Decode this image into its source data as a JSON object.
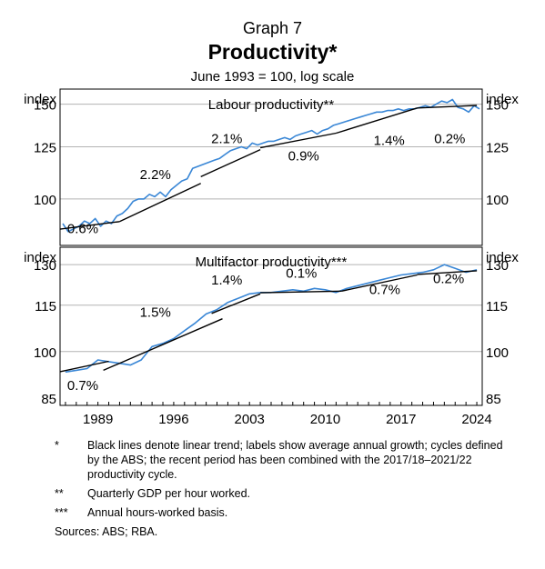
{
  "header": {
    "graph_number": "Graph 7",
    "title": "Productivity*",
    "subtitle": "June 1993 = 100, log scale"
  },
  "footnotes": [
    {
      "mark": "*",
      "text": "Black lines denote linear trend; labels show average annual growth; cycles defined by the ABS; the recent period has been combined with the 2017/18–2021/22 productivity cycle."
    },
    {
      "mark": "**",
      "text": "Quarterly GDP per hour worked."
    },
    {
      "mark": "***",
      "text": "Annual hours-worked basis."
    }
  ],
  "sources": "Sources: ABS; RBA.",
  "colors": {
    "series": "#3a87d6",
    "trend": "#000000",
    "grid": "#b3b3b3"
  },
  "chart_data": [
    {
      "type": "line",
      "title": "Labour productivity**",
      "unit_label": "index",
      "scale": "log",
      "ylim": [
        82,
        160
      ],
      "yticks": [
        100,
        125,
        150
      ],
      "xlim": [
        1985.5,
        2024.5
      ],
      "xticks": [
        1989,
        1996,
        2003,
        2010,
        2017,
        2024
      ],
      "grid": true,
      "series": [
        {
          "role": "actual",
          "x": [
            1985.75,
            1986.25,
            1986.75,
            1987.25,
            1987.75,
            1988.25,
            1988.75,
            1989.25,
            1989.75,
            1990.25,
            1990.75,
            1991.25,
            1991.75,
            1992.25,
            1992.75,
            1993.25,
            1993.75,
            1994.25,
            1994.75,
            1995.25,
            1995.75,
            1996.25,
            1996.75,
            1997.25,
            1997.75,
            1998.25,
            1998.75,
            1999.25,
            1999.75,
            2000.25,
            2000.75,
            2001.25,
            2001.75,
            2002.25,
            2002.75,
            2003.25,
            2003.75,
            2004.25,
            2004.75,
            2005.25,
            2005.75,
            2006.25,
            2006.75,
            2007.25,
            2007.75,
            2008.25,
            2008.75,
            2009.25,
            2009.75,
            2010.25,
            2010.75,
            2011.25,
            2011.75,
            2012.25,
            2012.75,
            2013.25,
            2013.75,
            2014.25,
            2014.75,
            2015.25,
            2015.75,
            2016.25,
            2016.75,
            2017.25,
            2017.75,
            2018.25,
            2018.75,
            2019.25,
            2019.75,
            2020.25,
            2020.75,
            2021.25,
            2021.75,
            2022.25,
            2022.75,
            2023.25,
            2023.75,
            2024.25
          ],
          "values": [
            90,
            87,
            88,
            89,
            91,
            90,
            92,
            89,
            91,
            90,
            93,
            94,
            96,
            99,
            100,
            100,
            102,
            101,
            103,
            101,
            104,
            106,
            108,
            109,
            114,
            115,
            116,
            117,
            118,
            119,
            121,
            123,
            124,
            125,
            124,
            127,
            126,
            127,
            128,
            128,
            129,
            130,
            129,
            131,
            132,
            133,
            134,
            132,
            134,
            135,
            137,
            138,
            139,
            140,
            141,
            142,
            143,
            144,
            145,
            145,
            146,
            146,
            147,
            146,
            147,
            147,
            148,
            149,
            148,
            150,
            152,
            151,
            153,
            148,
            147,
            145,
            149,
            147
          ]
        },
        {
          "role": "trend",
          "segment": "0.6%",
          "x": [
            1985.5,
            1991.0
          ],
          "values": [
            87.9,
            90.8
          ]
        },
        {
          "role": "trend",
          "segment": "2.2%",
          "x": [
            1991.0,
            1998.5
          ],
          "values": [
            90.8,
            106.9
          ]
        },
        {
          "role": "trend",
          "segment": "2.1%",
          "x": [
            1998.5,
            2004.0
          ],
          "values": [
            110.0,
            123.5
          ]
        },
        {
          "role": "trend",
          "segment": "0.9%",
          "x": [
            2004.0,
            2011.0
          ],
          "values": [
            124.5,
            132.5
          ]
        },
        {
          "role": "trend",
          "segment": "1.4%",
          "x": [
            2011.0,
            2018.5
          ],
          "values": [
            132.5,
            147.6
          ]
        },
        {
          "role": "trend",
          "segment": "0.2%",
          "x": [
            2018.5,
            2024.0
          ],
          "values": [
            147.6,
            149.2
          ]
        }
      ],
      "annotations": [
        {
          "text": "0.6%",
          "x": 1987.6,
          "y": 86.5
        },
        {
          "text": "2.2%",
          "x": 1994.3,
          "y": 109
        },
        {
          "text": "2.1%",
          "x": 2000.9,
          "y": 127
        },
        {
          "text": "0.9%",
          "x": 2008.0,
          "y": 118
        },
        {
          "text": "1.4%",
          "x": 2015.9,
          "y": 126
        },
        {
          "text": "0.2%",
          "x": 2021.5,
          "y": 127
        }
      ]
    },
    {
      "type": "line",
      "title": "Multifactor productivity***",
      "unit_label": "index",
      "scale": "log",
      "ylim": [
        85,
        137
      ],
      "yticks": [
        85,
        100,
        115,
        130
      ],
      "xlim": [
        1985.5,
        2024.5
      ],
      "xticks": [
        1989,
        1996,
        2003,
        2010,
        2017,
        2024
      ],
      "grid": true,
      "series": [
        {
          "role": "actual",
          "x": [
            1986,
            1987,
            1988,
            1989,
            1990,
            1991,
            1992,
            1993,
            1994,
            1995,
            1996,
            1997,
            1998,
            1999,
            2000,
            2001,
            2002,
            2003,
            2004,
            2005,
            2006,
            2007,
            2008,
            2009,
            2010,
            2011,
            2012,
            2013,
            2014,
            2015,
            2016,
            2017,
            2018,
            2019,
            2020,
            2021,
            2022,
            2023,
            2024
          ],
          "values": [
            94,
            94.5,
            95,
            97.5,
            97,
            96.5,
            96,
            97.5,
            101.5,
            102.5,
            104,
            106.5,
            109,
            112,
            113.5,
            116,
            117.5,
            119,
            119.5,
            119.5,
            120,
            120.5,
            120,
            121,
            120.5,
            119.5,
            121,
            122,
            123,
            124,
            125,
            126,
            126.5,
            127,
            128,
            130,
            128.5,
            127,
            128
          ]
        },
        {
          "role": "trend",
          "segment": "0.7%",
          "x": [
            1985.5,
            1990.0
          ],
          "values": [
            94.1,
            97.1
          ]
        },
        {
          "role": "trend",
          "segment": "1.5%",
          "x": [
            1989.5,
            2000.5
          ],
          "values": [
            94.5,
            110.4
          ]
        },
        {
          "role": "trend",
          "segment": "1.4%",
          "x": [
            1999.5,
            2004.0
          ],
          "values": [
            112.2,
            119.0
          ]
        },
        {
          "role": "trend",
          "segment": "0.1%",
          "x": [
            2004.0,
            2011.5
          ],
          "values": [
            119.4,
            120.0
          ]
        },
        {
          "role": "trend",
          "segment": "0.7%",
          "x": [
            2011.5,
            2018.5
          ],
          "values": [
            120.0,
            126.0
          ]
        },
        {
          "role": "trend",
          "segment": "0.2%",
          "x": [
            2018.5,
            2024.0
          ],
          "values": [
            126.2,
            127.6
          ]
        }
      ],
      "annotations": [
        {
          "text": "0.7%",
          "x": 1987.6,
          "y": 89
        },
        {
          "text": "1.5%",
          "x": 1994.3,
          "y": 111
        },
        {
          "text": "1.4%",
          "x": 2000.9,
          "y": 122.5
        },
        {
          "text": "0.1%",
          "x": 2007.8,
          "y": 125
        },
        {
          "text": "0.7%",
          "x": 2015.5,
          "y": 119
        },
        {
          "text": "0.2%",
          "x": 2021.4,
          "y": 123
        }
      ]
    }
  ]
}
